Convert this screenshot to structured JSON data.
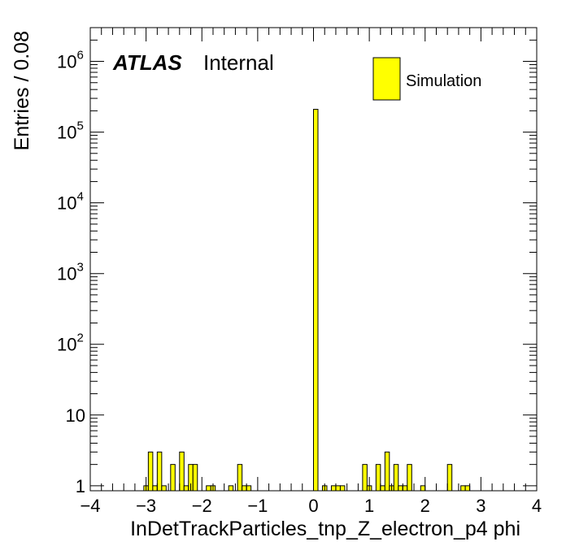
{
  "chart_data": {
    "type": "bar",
    "xlabel": "InDetTrackParticles_tnp_Z_electron_p4 phi",
    "ylabel": "Entries / 0.08",
    "xlim": [
      -4,
      4
    ],
    "ylim": [
      0.85,
      3000000
    ],
    "y_scale": "log",
    "bin_width": 0.08,
    "x_ticks": [
      -4,
      -3,
      -2,
      -1,
      0,
      1,
      2,
      3,
      4
    ],
    "x_tick_labels": [
      "−4",
      "−3",
      "−2",
      "−1",
      "0",
      "1",
      "2",
      "3",
      "4"
    ],
    "y_ticks": [
      {
        "value": 1,
        "base": "1",
        "exp": ""
      },
      {
        "value": 10,
        "base": "10",
        "exp": ""
      },
      {
        "value": 100,
        "base": "10",
        "exp": "2"
      },
      {
        "value": 1000,
        "base": "10",
        "exp": "3"
      },
      {
        "value": 10000,
        "base": "10",
        "exp": "4"
      },
      {
        "value": 100000,
        "base": "10",
        "exp": "5"
      },
      {
        "value": 1000000,
        "base": "10",
        "exp": "6"
      }
    ],
    "label_main": "ATLAS",
    "label_sub": "Internal",
    "legend": [
      {
        "name": "Simulation",
        "color": "#ffff00",
        "position": "top-right"
      }
    ],
    "bar_color": "#ffff00",
    "series": [
      {
        "name": "Simulation",
        "bins": [
          {
            "x": -3.04,
            "y": 1
          },
          {
            "x": -2.96,
            "y": 3
          },
          {
            "x": -2.88,
            "y": 1
          },
          {
            "x": -2.8,
            "y": 3
          },
          {
            "x": -2.72,
            "y": 1
          },
          {
            "x": -2.56,
            "y": 2
          },
          {
            "x": -2.4,
            "y": 3
          },
          {
            "x": -2.32,
            "y": 1
          },
          {
            "x": -2.24,
            "y": 2
          },
          {
            "x": -2.16,
            "y": 2
          },
          {
            "x": -1.92,
            "y": 1
          },
          {
            "x": -1.84,
            "y": 1
          },
          {
            "x": -1.52,
            "y": 1
          },
          {
            "x": -1.36,
            "y": 2
          },
          {
            "x": -1.28,
            "y": 1
          },
          {
            "x": -1.2,
            "y": 1
          },
          {
            "x": 0.0,
            "y": 210000
          },
          {
            "x": 0.16,
            "y": 1
          },
          {
            "x": 0.32,
            "y": 1
          },
          {
            "x": 0.4,
            "y": 1
          },
          {
            "x": 0.48,
            "y": 1
          },
          {
            "x": 0.88,
            "y": 2
          },
          {
            "x": 0.96,
            "y": 1
          },
          {
            "x": 1.12,
            "y": 2
          },
          {
            "x": 1.2,
            "y": 1
          },
          {
            "x": 1.28,
            "y": 3
          },
          {
            "x": 1.36,
            "y": 1
          },
          {
            "x": 1.44,
            "y": 2
          },
          {
            "x": 1.52,
            "y": 1
          },
          {
            "x": 1.6,
            "y": 1
          },
          {
            "x": 1.68,
            "y": 2
          },
          {
            "x": 1.92,
            "y": 1
          },
          {
            "x": 2.4,
            "y": 2
          },
          {
            "x": 2.64,
            "y": 1
          },
          {
            "x": 2.72,
            "y": 1
          }
        ]
      }
    ]
  }
}
